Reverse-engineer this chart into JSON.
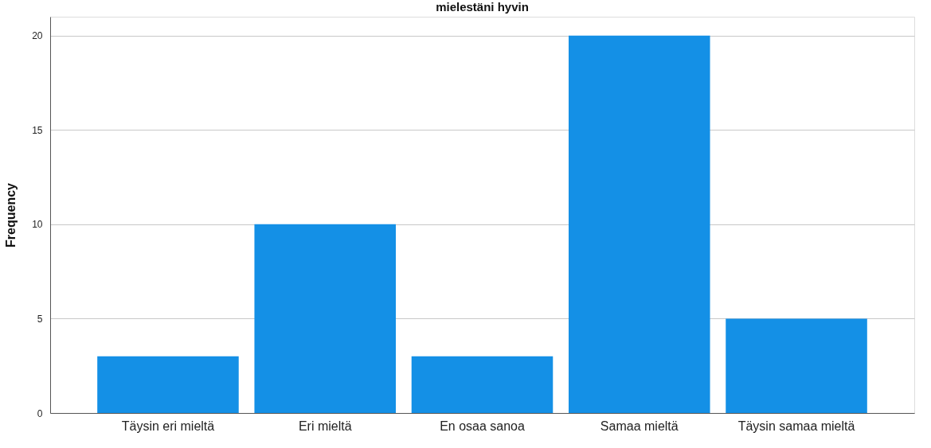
{
  "chart_data": {
    "type": "bar",
    "title": "mielestäni hyvin",
    "ylabel": "Frequency",
    "categories": [
      "Täysin eri mieltä",
      "Eri mieltä",
      "En osaa sanoa",
      "Samaa mieltä",
      "Täysin samaa mieltä"
    ],
    "values": [
      3,
      10,
      3,
      20,
      5
    ],
    "color": "#1490e6",
    "ylim": [
      0,
      21
    ],
    "yticks": [
      0,
      5,
      10,
      15,
      20
    ],
    "grid": "y"
  }
}
